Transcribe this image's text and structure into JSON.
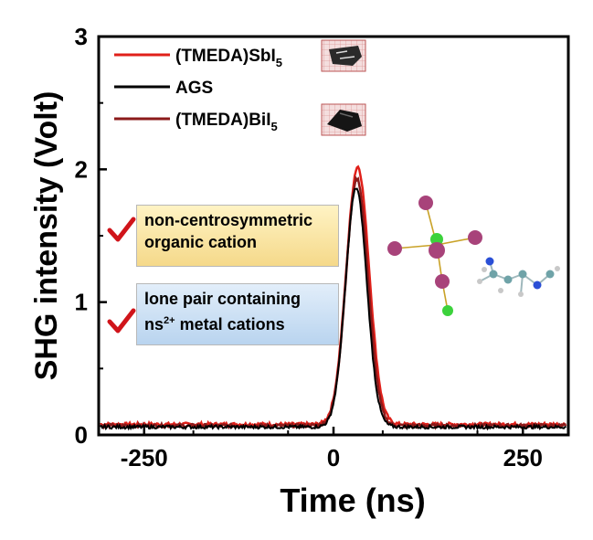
{
  "chart_data": {
    "type": "line",
    "xlabel": "Time (ns)",
    "ylabel": "SHG intensity (Volt)",
    "xlim": [
      -310,
      310
    ],
    "ylim": [
      0,
      3
    ],
    "xticks": [
      -250,
      0,
      250
    ],
    "yticks": [
      0,
      1,
      2,
      3
    ],
    "legend_position": "top-left",
    "series": [
      {
        "name": "(TMEDA)SbI",
        "subscript": "5",
        "color": "#e0201a",
        "peak": 2.02,
        "center": 32,
        "width": 15,
        "baseline": 0.08
      },
      {
        "name": "AGS",
        "subscript": "",
        "color": "#000000",
        "peak": 1.86,
        "center": 30,
        "width": 14,
        "baseline": 0.06
      },
      {
        "name": "(TMEDA)BiI",
        "subscript": "5",
        "color": "#8b1a1a",
        "peak": 1.93,
        "center": 31,
        "width": 14.5,
        "baseline": 0.07
      }
    ]
  },
  "annotations": {
    "box1": {
      "line1": "non-centrosymmetric",
      "line2": "organic cation"
    },
    "box2": {
      "line1": "lone pair containing",
      "line2_pre": "ns",
      "line2_sup": "2+",
      "line2_post": " metal cations"
    }
  },
  "colors": {
    "check": "#d0141a",
    "atom_iodine": "#a8437a",
    "atom_metal": "#3cd23c",
    "atom_carbon": "#6fa3a8",
    "atom_nitrogen": "#2a4fd6"
  },
  "icons": [
    "crystal-sb-photo-icon",
    "crystal-bi-photo-icon",
    "check-icon",
    "molecule-structure-icon"
  ]
}
